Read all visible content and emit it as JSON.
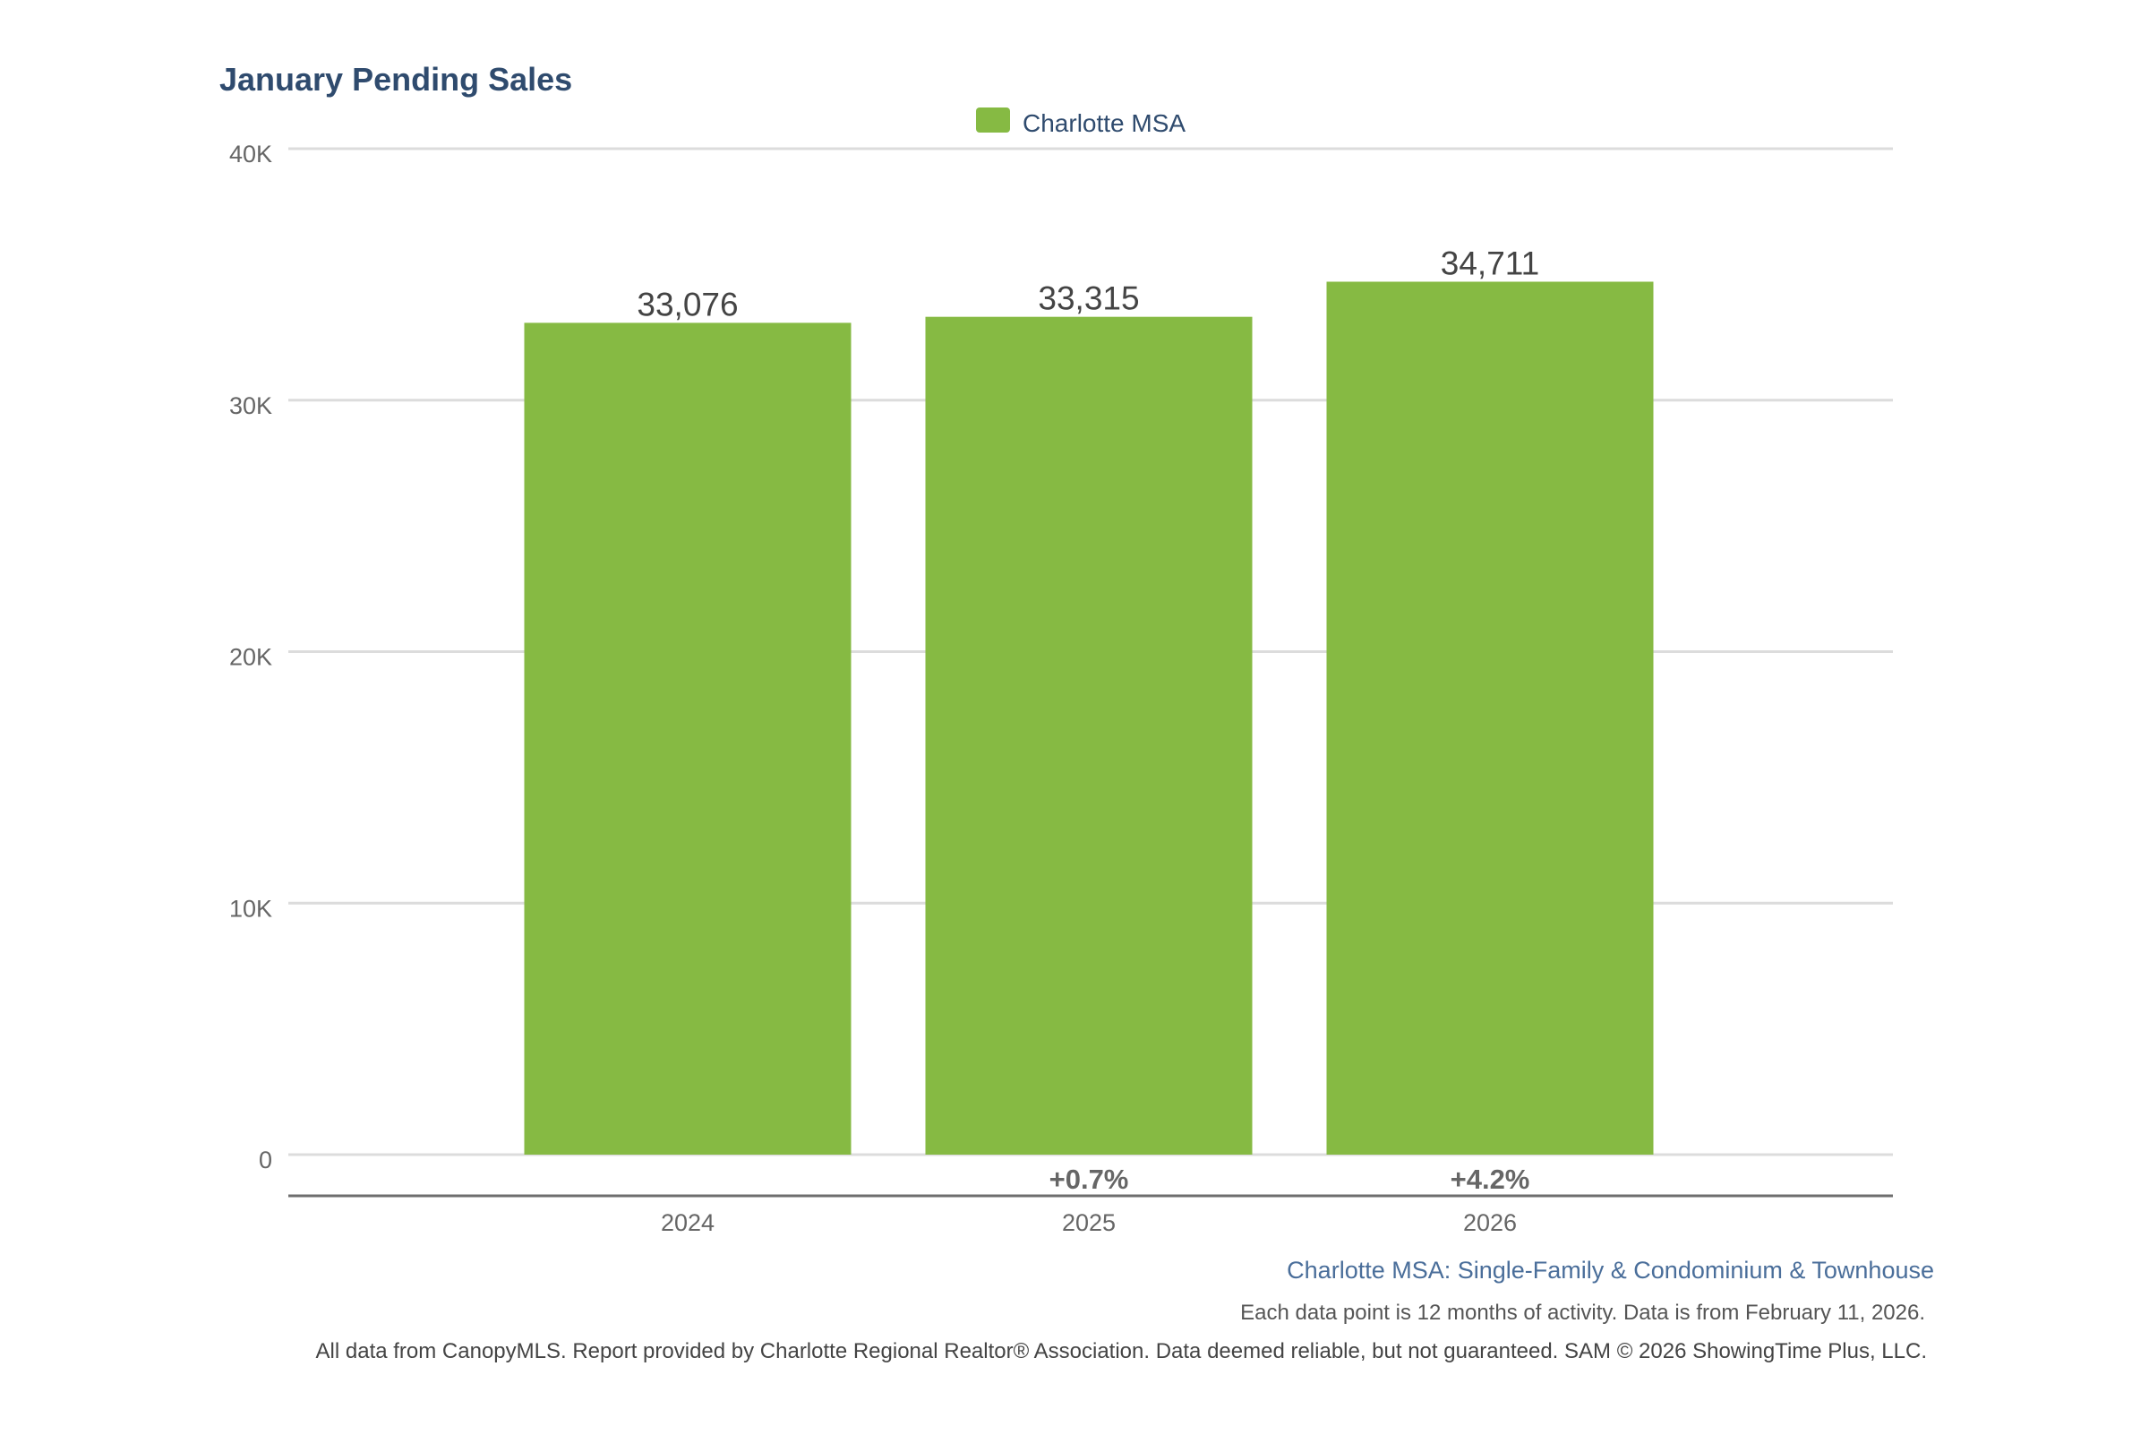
{
  "chart_data": {
    "type": "bar",
    "title": "January Pending Sales",
    "categories": [
      "2024",
      "2025",
      "2026"
    ],
    "series": [
      {
        "name": "Charlotte MSA",
        "color": "#86ba43",
        "values": [
          33076,
          33315,
          34711
        ],
        "value_labels": [
          "33,076",
          "33,315",
          "34,711"
        ]
      }
    ],
    "change_labels": [
      "",
      "+0.7%",
      "+4.2%"
    ],
    "xlabel": "",
    "ylabel": "",
    "ylim": [
      0,
      40000
    ],
    "yticks": [
      0,
      10000,
      20000,
      30000,
      40000
    ],
    "ytick_labels": [
      "0",
      "10K",
      "20K",
      "30K",
      "40K"
    ],
    "grid": true,
    "legend": {
      "entries": [
        "Charlotte MSA"
      ],
      "placement": "top-center"
    },
    "subtitle": "Charlotte MSA: Single-Family & Condominium & Townhouse",
    "note": "Each data point is 12 months of activity. Data is from February 11, 2026.",
    "footer": "All data from CanopyMLS. Report provided by Charlotte Regional Realtor® Association. Data deemed reliable, but not guaranteed. SAM © 2026 ShowingTime Plus, LLC."
  }
}
